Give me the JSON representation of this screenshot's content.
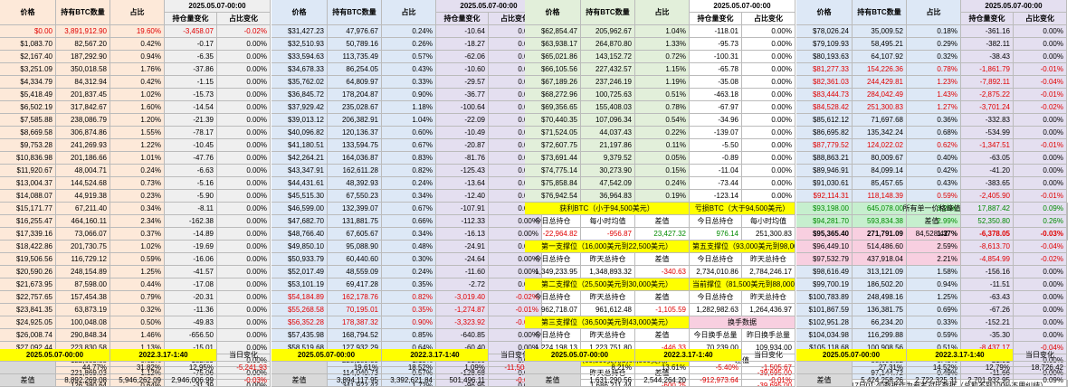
{
  "header": {
    "columns": [
      "价格",
      "持有BTC数量",
      "占比"
    ],
    "group_date": "2025.05.07-00:00",
    "group_cols": [
      "持仓量变化",
      "占比变化"
    ]
  },
  "blocks": [
    {
      "rows": [
        [
          "$0.00",
          "3,891,912.90",
          "19.60%",
          "-3,458.07",
          "-0.02%"
        ],
        [
          "$1,083.70",
          "82,567.20",
          "0.42%",
          "-0.17",
          "0.00%"
        ],
        [
          "$2,167.40",
          "187,292.90",
          "0.94%",
          "-6.35",
          "0.00%"
        ],
        [
          "$3,251.09",
          "350,018.58",
          "1.76%",
          "-37.86",
          "0.00%"
        ],
        [
          "$4,334.79",
          "84,312.94",
          "0.42%",
          "-1.15",
          "0.00%"
        ],
        [
          "$5,418.49",
          "201,837.45",
          "1.02%",
          "-15.73",
          "0.00%"
        ],
        [
          "$6,502.19",
          "317,842.67",
          "1.60%",
          "-14.54",
          "0.00%"
        ],
        [
          "$7,585.88",
          "238,086.79",
          "1.20%",
          "-21.39",
          "0.00%"
        ],
        [
          "$8,669.58",
          "306,874.86",
          "1.55%",
          "-78.17",
          "0.00%"
        ],
        [
          "$9,753.28",
          "241,269.93",
          "1.22%",
          "-10.45",
          "0.00%"
        ],
        [
          "$10,836.98",
          "201,186.66",
          "1.01%",
          "-47.76",
          "0.00%"
        ],
        [
          "$11,920.67",
          "48,004.71",
          "0.24%",
          "-6.63",
          "0.00%"
        ],
        [
          "$13,004.37",
          "144,524.68",
          "0.73%",
          "-5.16",
          "0.00%"
        ],
        [
          "$14,088.07",
          "44,919.38",
          "0.23%",
          "-5.90",
          "0.00%"
        ],
        [
          "$15,171.77",
          "67,211.40",
          "0.34%",
          "-8.11",
          "0.00%"
        ],
        [
          "$16,255.47",
          "464,160.11",
          "2.34%",
          "-162.38",
          "0.00%"
        ],
        [
          "$17,339.16",
          "73,066.07",
          "0.37%",
          "-14.89",
          "0.00%"
        ],
        [
          "$18,422.86",
          "201,730.75",
          "1.02%",
          "-19.69",
          "0.00%"
        ],
        [
          "$19,506.56",
          "116,729.12",
          "0.59%",
          "-16.06",
          "0.00%"
        ],
        [
          "$20,590.26",
          "248,154.89",
          "1.25%",
          "-41.57",
          "0.00%"
        ],
        [
          "$21,673.95",
          "87,598.00",
          "0.44%",
          "-17.08",
          "0.00%"
        ],
        [
          "$22,757.65",
          "157,454.38",
          "0.79%",
          "-20.31",
          "0.00%"
        ],
        [
          "$23,841.35",
          "63,873.19",
          "0.32%",
          "-11.36",
          "0.00%"
        ],
        [
          "$24,925.05",
          "100,048.08",
          "0.50%",
          "-49.83",
          "0.00%"
        ],
        [
          "$26,008.74",
          "290,848.34",
          "1.46%",
          "-656.50",
          "0.00%"
        ],
        [
          "$27,092.44",
          "223,830.58",
          "1.13%",
          "-15.01",
          "0.00%"
        ],
        [
          "$28,176.14",
          "122,683.88",
          "0.62%",
          "-182.89",
          "0.00%"
        ],
        [
          "$29,259.84",
          "221,869.03",
          "1.12%",
          "-75.06",
          "0.00%"
        ],
        [
          "$30,343.54",
          "126,380.64",
          "0.64%",
          "-31.39",
          "0.00%"
        ]
      ]
    },
    {
      "rows": [
        [
          "$31,427.23",
          "47,976.67",
          "0.24%",
          "-10.64",
          "0.00%"
        ],
        [
          "$32,510.93",
          "50,789.16",
          "0.26%",
          "-18.27",
          "0.00%"
        ],
        [
          "$33,594.63",
          "113,735.49",
          "0.57%",
          "-62.06",
          "0.00%"
        ],
        [
          "$34,678.33",
          "86,254.05",
          "0.43%",
          "-10.60",
          "0.00%"
        ],
        [
          "$35,762.02",
          "64,809.97",
          "0.33%",
          "-29.57",
          "0.00%"
        ],
        [
          "$36,845.72",
          "178,204.87",
          "0.90%",
          "-36.77",
          "0.00%"
        ],
        [
          "$37,929.42",
          "235,028.67",
          "1.18%",
          "-100.64",
          "0.00%"
        ],
        [
          "$39,013.12",
          "206,382.91",
          "1.04%",
          "-22.09",
          "0.00%"
        ],
        [
          "$40,096.82",
          "120,136.37",
          "0.60%",
          "-10.49",
          "0.00%"
        ],
        [
          "$41,180.51",
          "133,594.75",
          "0.67%",
          "-20.87",
          "0.00%"
        ],
        [
          "$42,264.21",
          "164,036.87",
          "0.83%",
          "-81.76",
          "0.00%"
        ],
        [
          "$43,347.91",
          "162,611.28",
          "0.82%",
          "-125.43",
          "0.00%"
        ],
        [
          "$44,431.61",
          "48,392.93",
          "0.24%",
          "-13.64",
          "0.00%"
        ],
        [
          "$45,515.30",
          "67,550.23",
          "0.34%",
          "-12.40",
          "0.00%"
        ],
        [
          "$46,599.00",
          "132,399.07",
          "0.67%",
          "-107.91",
          "0.00%"
        ],
        [
          "$47,682.70",
          "131,881.75",
          "0.66%",
          "-112.33",
          "0.00%"
        ],
        [
          "$48,766.40",
          "67,605.67",
          "0.34%",
          "-16.13",
          "0.00%"
        ],
        [
          "$49,850.10",
          "95,088.90",
          "0.48%",
          "-24.91",
          "0.00%"
        ],
        [
          "$50,933.79",
          "60,440.60",
          "0.30%",
          "-24.64",
          "0.00%"
        ],
        [
          "$52,017.49",
          "48,559.09",
          "0.24%",
          "-11.60",
          "0.00%"
        ],
        [
          "$53,101.19",
          "69,417.28",
          "0.35%",
          "-2.72",
          "0.00%"
        ],
        [
          "$54,184.89",
          "162,178.76",
          "0.82%",
          "-3,019.40",
          "-0.02%"
        ],
        [
          "$55,268.58",
          "70,195.01",
          "0.35%",
          "-1,274.87",
          "-0.01%"
        ],
        [
          "$56,352.28",
          "178,387.32",
          "0.90%",
          "-3,323.92",
          "-0.02%"
        ],
        [
          "$57,435.98",
          "168,794.52",
          "0.85%",
          "-640.85",
          "0.00%"
        ],
        [
          "$58,519.68",
          "127,932.29",
          "0.64%",
          "-60.40",
          "0.00%"
        ],
        [
          "$59,603.37",
          "228,189.35",
          "1.15%",
          "-81.80",
          "0.00%"
        ],
        [
          "$60,687.07",
          "114,040.73",
          "0.57%",
          "-128.68",
          "0.00%"
        ],
        [
          "$61,770.77",
          "341,922.42",
          "1.72%",
          "-96.95",
          "0.00%"
        ]
      ]
    },
    {
      "rows": [
        [
          "$62,854.47",
          "205,962.67",
          "1.04%",
          "-118.01",
          "0.00%"
        ],
        [
          "$63,938.17",
          "264,870.80",
          "1.33%",
          "-95.73",
          "0.00%"
        ],
        [
          "$65,021.86",
          "143,152.72",
          "0.72%",
          "-100.31",
          "0.00%"
        ],
        [
          "$66,105.56",
          "227,432.57",
          "1.15%",
          "-65.78",
          "0.00%"
        ],
        [
          "$67,189.26",
          "237,246.19",
          "1.19%",
          "-35.08",
          "0.00%"
        ],
        [
          "$68,272.96",
          "100,725.63",
          "0.51%",
          "-463.18",
          "0.00%"
        ],
        [
          "$69,356.65",
          "155,408.03",
          "0.78%",
          "-67.97",
          "0.00%"
        ],
        [
          "$70,440.35",
          "107,096.34",
          "0.54%",
          "-34.96",
          "0.00%"
        ],
        [
          "$71,524.05",
          "44,037.43",
          "0.22%",
          "-139.07",
          "0.00%"
        ],
        [
          "$72,607.75",
          "21,197.86",
          "0.11%",
          "-5.50",
          "0.00%"
        ],
        [
          "$73,691.44",
          "9,379.52",
          "0.05%",
          "-0.89",
          "0.00%"
        ],
        [
          "$74,775.14",
          "30,273.90",
          "0.15%",
          "-11.04",
          "0.00%"
        ],
        [
          "$75,858.84",
          "47,542.09",
          "0.24%",
          "-73.44",
          "0.00%"
        ],
        [
          "$76,942.54",
          "36,964.83",
          "0.19%",
          "-123.14",
          "0.00%"
        ]
      ],
      "summary": {
        "win_title": "获利BTC（小于94,500美元）",
        "lose_title": "亏损BTC（大于94,500美元）",
        "max_title": "所有单一价格峰值",
        "l1": [
          "今日总持仓",
          "每小时均值",
          "差值",
          "今日总持仓",
          "每小时均值",
          "差值"
        ],
        "v1": [
          "-22,964.82",
          "-956.87",
          "23,427.32",
          "976.14",
          "251,300.83"
        ],
        "ext1": "84,528.42",
        "s1": "第一支撑位（16,000美元到22,500美元）",
        "s5": "第五支撑位（93,000美元到98,000美元）",
        "l2": [
          "今日总持仓",
          "昨天总持仓",
          "差值",
          "今日总持仓",
          "昨天总持仓",
          "差值"
        ],
        "v2": [
          "1,349,233.95",
          "1,348,893.32",
          "-340.63",
          "2,734,010.86",
          "2,784,246.17",
          "50,235.31"
        ],
        "s2": "第二支撑位（25,500美元到30,000美元）",
        "cur": "当前撑位（81,500美元到88,000美元）",
        "v3": [
          "962,718.07",
          "961,612.48",
          "-1,105.59",
          "1,282,982.63",
          "1,264,436.97",
          "-18,545.67"
        ],
        "s3": "第三支撑位（36,500美元到43,000美元）",
        "swap": "换手数据",
        "v4": [
          "1,224,198.13",
          "1,223,751.80",
          "-446.33"
        ],
        "swap_l": [
          "今日换手总量",
          "昨日换手总量",
          "差值"
        ],
        "swap_v": [
          "70,239.00",
          "109,934.00",
          "-39,695.00"
        ],
        "s4": "第四支撑位（60,500美元到66,500美元）",
        "v5": [
          "1,686,811.69",
          "1,686,211.44",
          "-600.25"
        ]
      }
    },
    {
      "rows": [
        [
          "$78,026.24",
          "35,009.52",
          "0.18%",
          "-361.16",
          "0.00%"
        ],
        [
          "$79,109.93",
          "58,495.21",
          "0.29%",
          "-382.11",
          "0.00%"
        ],
        [
          "$80,193.63",
          "64,107.92",
          "0.32%",
          "-38.43",
          "0.00%"
        ],
        [
          "$81,277.33",
          "154,226.36",
          "0.78%",
          "-1,861.79",
          "-0.01%"
        ],
        [
          "$82,361.03",
          "244,429.81",
          "1.23%",
          "-7,892.11",
          "-0.04%"
        ],
        [
          "$83,444.73",
          "284,042.49",
          "1.43%",
          "-2,875.22",
          "-0.01%"
        ],
        [
          "$84,528.42",
          "251,300.83",
          "1.27%",
          "-3,701.24",
          "-0.02%"
        ],
        [
          "$85,612.12",
          "71,697.68",
          "0.36%",
          "-332.83",
          "0.00%"
        ],
        [
          "$86,695.82",
          "135,342.24",
          "0.68%",
          "-534.99",
          "0.00%"
        ],
        [
          "$87,779.52",
          "124,022.02",
          "0.62%",
          "-1,347.51",
          "-0.01%"
        ],
        [
          "$88,863.21",
          "80,009.67",
          "0.40%",
          "-63.05",
          "0.00%"
        ],
        [
          "$89,946.91",
          "84,099.14",
          "0.42%",
          "-41.20",
          "0.00%"
        ],
        [
          "$91,030.61",
          "85,457.65",
          "0.43%",
          "-383.65",
          "0.00%"
        ],
        [
          "$92,114.31",
          "118,148.39",
          "0.59%",
          "-2,405.90",
          "-0.01%"
        ],
        [
          "$93,198.00",
          "645,078.00",
          "3.25%",
          "17,887.42",
          "0.09%"
        ],
        [
          "$94,281.70",
          "593,834.38",
          "2.99%",
          "52,350.80",
          "0.26%"
        ],
        [
          "$95,365.40",
          "271,791.09",
          "1.37%",
          "-6,378.05",
          "-0.03%"
        ],
        [
          "$96,449.10",
          "514,486.60",
          "2.59%",
          "-8,613.70",
          "-0.04%"
        ],
        [
          "$97,532.79",
          "437,918.04",
          "2.21%",
          "-4,854.99",
          "-0.02%"
        ],
        [
          "$98,616.49",
          "313,121.09",
          "1.58%",
          "-156.16",
          "0.00%"
        ],
        [
          "$99,700.19",
          "186,502.20",
          "0.94%",
          "-11.51",
          "0.00%"
        ],
        [
          "$100,783.89",
          "248,498.16",
          "1.25%",
          "-63.43",
          "0.00%"
        ],
        [
          "$101,867.59",
          "136,381.75",
          "0.69%",
          "-67.26",
          "0.00%"
        ],
        [
          "$102,951.28",
          "66,234.20",
          "0.33%",
          "-152.21",
          "0.00%"
        ],
        [
          "$104,034.98",
          "116,299.88",
          "0.59%",
          "-35.30",
          "0.00%"
        ],
        [
          "$105,118.68",
          "100,908.56",
          "0.51%",
          "-8,437.17",
          "-0.04%"
        ],
        [
          "$106,202.38",
          "88,606.82",
          "0.45%",
          "-21.91",
          "0.00%"
        ],
        [
          "$107,286.07",
          "97,144.72",
          "0.49%",
          "-11.66",
          "0.00%"
        ]
      ],
      "note": "2022年3月17日01:40数据作为参考对比数据（总和不到100%不用纠结）"
    }
  ],
  "footer": {
    "date_a": "2025.05.07-00:00",
    "date_b": "2022.3.17-1:40",
    "today": "当日变化",
    "diff": "差值",
    "sections": [
      {
        "row1": [
          "44.77%",
          "31.82%",
          "12.95%",
          "-5,241.93"
        ],
        "row2": [
          "8,892,269.08",
          "5,946,262.09",
          "2,946,006.99",
          "-0.03%"
        ]
      },
      {
        "row1": [
          "19.61%",
          "18.52%",
          "1.09%",
          "-11,504.65"
        ],
        "row2": [
          "3,894,117.95",
          "3,392,621.84",
          "501,496.11",
          "-0.06%"
        ]
      },
      {
        "row1": [
          "8.21%",
          "13.61%",
          "-5.40%",
          "-1,505.67"
        ],
        "row2": [
          "1,631,290.56",
          "2,544,264.20",
          "-912,973.64",
          "-0.01%"
        ]
      },
      {
        "row1": [
          "27.31%",
          "14.52%",
          "12.79%",
          "18,726.42"
        ],
        "row2": [
          "5,424,258.26",
          "2,722,325.31",
          "2,701,932.95",
          "0.09%"
        ]
      }
    ]
  }
}
